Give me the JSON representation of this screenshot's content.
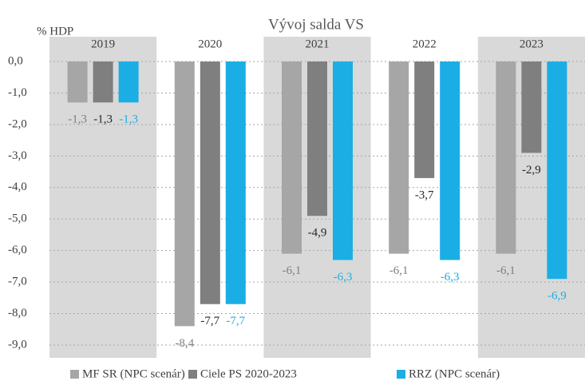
{
  "chart_data": {
    "type": "bar",
    "title": "Vývoj salda VS",
    "y_label": "% HDP",
    "categories": [
      "2019",
      "2020",
      "2021",
      "2022",
      "2023"
    ],
    "series": [
      {
        "name": "MF SR (NPC scenár)",
        "color": "#a6a6a6",
        "label_color": "#7f7f7f",
        "values": [
          -1.3,
          -8.4,
          -6.1,
          -6.1,
          -6.1
        ],
        "value_labels": [
          "-1,3",
          "-8,4",
          "-6,1",
          "-6,1",
          "-6,1"
        ]
      },
      {
        "name": "Ciele PS 2020-2023",
        "color": "#7f7f7f",
        "label_color": "#262626",
        "values": [
          -1.3,
          -7.7,
          -4.9,
          -3.7,
          -2.9
        ],
        "value_labels": [
          "-1,3",
          "-7,7",
          "-4,9",
          "-3,7",
          "-2,9"
        ]
      },
      {
        "name": "RRZ (NPC scenár)",
        "color": "#1aaee5",
        "label_color": "#1aaee5",
        "values": [
          -1.3,
          -7.7,
          -6.3,
          -6.3,
          -6.9
        ],
        "value_labels": [
          "-1,3",
          "-7,7",
          "-6,3",
          "-6,3",
          "-6,9"
        ]
      }
    ],
    "ylim": [
      -9,
      0
    ],
    "yticks": [
      {
        "value": 0,
        "label": "0,0"
      },
      {
        "value": -1,
        "label": "-1,0"
      },
      {
        "value": -2,
        "label": "-2,0"
      },
      {
        "value": -3,
        "label": "-3,0"
      },
      {
        "value": -4,
        "label": "-4,0"
      },
      {
        "value": -5,
        "label": "-5,0"
      },
      {
        "value": -6,
        "label": "-6,0"
      },
      {
        "value": -7,
        "label": "-7,0"
      },
      {
        "value": -8,
        "label": "-8,0"
      },
      {
        "value": -9,
        "label": "-9,0"
      }
    ],
    "grid": true,
    "legend": "bottom"
  }
}
